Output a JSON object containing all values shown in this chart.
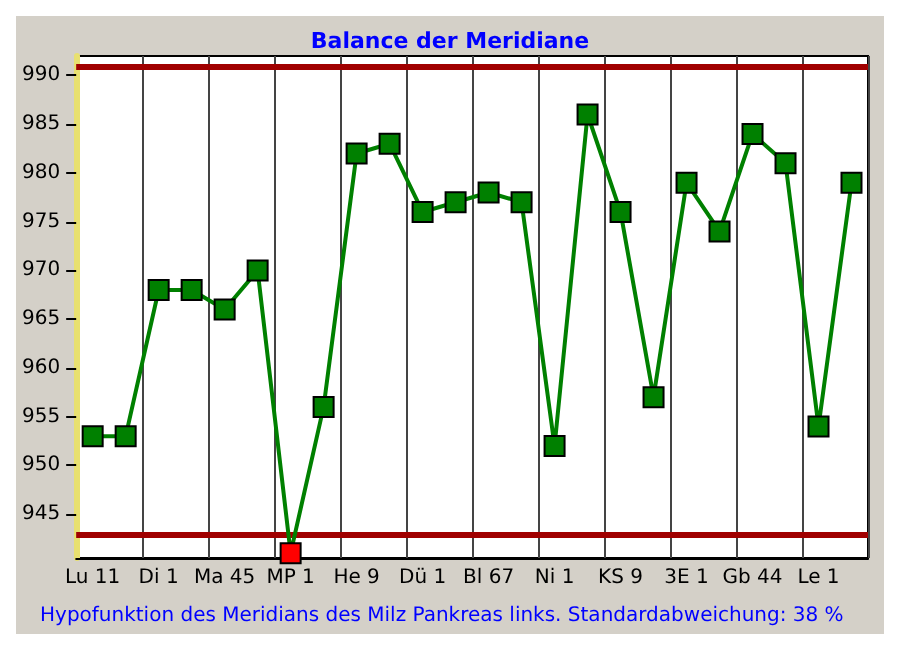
{
  "chart_data": {
    "type": "line",
    "title": "Balance der Meridiane",
    "categories": [
      "Lu 11",
      null,
      "Di 1",
      null,
      "Ma 45",
      null,
      "MP 1",
      null,
      "He 9",
      null,
      "Dü 1",
      null,
      "Bl 67",
      null,
      "Ni 1",
      null,
      "KS 9",
      null,
      "3E 1",
      null,
      "Gb 44",
      null,
      "Le 1",
      null
    ],
    "series": [
      {
        "color": "#008000",
        "values": [
          953,
          953,
          968,
          968,
          966,
          970,
          941,
          956,
          982,
          983,
          976,
          977,
          978,
          977,
          952,
          986,
          976,
          957,
          979,
          974,
          984,
          981,
          954,
          979
        ],
        "colors": [
          "#008000",
          "#008000",
          "#008000",
          "#008000",
          "#008000",
          "#008000",
          "#ff0000",
          "#008000",
          "#008000",
          "#008000",
          "#008000",
          "#008000",
          "#008000",
          "#008000",
          "#008000",
          "#008000",
          "#008000",
          "#008000",
          "#008000",
          "#008000",
          "#008000",
          "#008000",
          "#008000",
          "#008000"
        ]
      }
    ],
    "ylim": [
      940.5,
      992
    ],
    "yticks": [
      945,
      950,
      955,
      960,
      965,
      970,
      975,
      980,
      985,
      990
    ],
    "ref_lines": [
      {
        "axis": "y",
        "value": 991,
        "color": "#a00000"
      },
      {
        "axis": "y",
        "value": 943,
        "color": "#a00000"
      }
    ],
    "grid": "x",
    "marker": "square",
    "line_style": "solid",
    "annotations": [
      "Hypofunktion des Meridians des Milz Pankreas links. Standardabweichung: 38 %"
    ]
  }
}
